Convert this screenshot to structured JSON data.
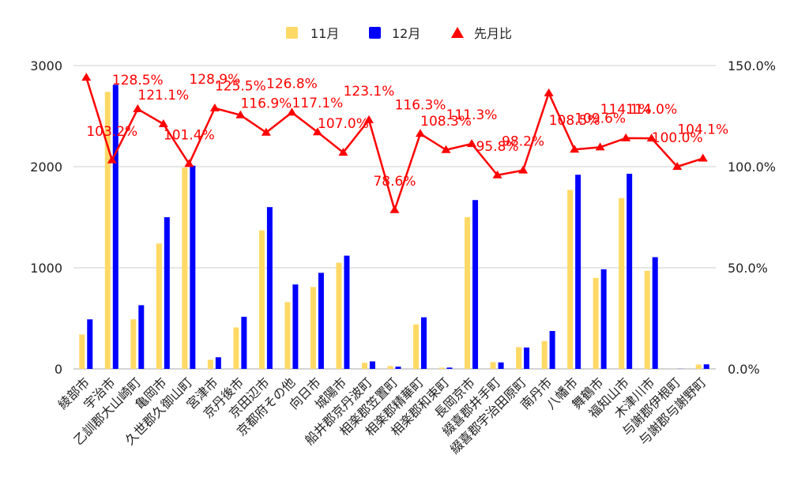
{
  "chart_data": {
    "type": "bar",
    "categories": [
      "綾部市",
      "宇治市",
      "乙訓郡大山崎町",
      "亀岡市",
      "久世郡久御山町",
      "宮津市",
      "京丹後市",
      "京田辺市",
      "京都府その他",
      "向日市",
      "城陽市",
      "船井郡京丹波町",
      "相楽郡笠置町",
      "相楽郡精華町",
      "相楽郡和束町",
      "長岡京市",
      "綴喜郡井手町",
      "綴喜郡宇治田原町",
      "南丹市",
      "八幡市",
      "舞鶴市",
      "福知山市",
      "木津川市",
      "与謝郡伊根町",
      "与謝郡与謝野町"
    ],
    "series": [
      {
        "name": "11月",
        "type": "bar",
        "axis": "left",
        "color": "#FFD966",
        "values": [
          340,
          2740,
          490,
          1240,
          1990,
          90,
          410,
          1370,
          660,
          810,
          1050,
          60,
          28,
          440,
          12,
          1500,
          67,
          215,
          275,
          1770,
          900,
          1690,
          970,
          1,
          43
        ]
      },
      {
        "name": "12月",
        "type": "bar",
        "axis": "left",
        "color": "#0000FF",
        "values": [
          490,
          2810,
          630,
          1500,
          2010,
          115,
          515,
          1600,
          835,
          950,
          1120,
          74,
          22,
          510,
          13,
          1670,
          64,
          211,
          375,
          1920,
          985,
          1930,
          1105,
          1,
          45
        ]
      },
      {
        "name": "先月比",
        "type": "line",
        "axis": "right",
        "color": "#FF0000",
        "marker": "triangle",
        "values": [
          144.1,
          103.2,
          128.5,
          121.1,
          101.4,
          128.9,
          125.5,
          116.9,
          126.8,
          117.1,
          107.0,
          123.1,
          78.6,
          116.3,
          108.3,
          111.3,
          95.8,
          98.2,
          136.4,
          108.5,
          109.6,
          114.1,
          114.0,
          100.0,
          104.1
        ],
        "data_labels": [
          "",
          "103.2%",
          "128.5%",
          "121.1%",
          "101.4%",
          "128.9%",
          "125.5%",
          "116.9%",
          "126.8%",
          "117.1%",
          "107.0%",
          "123.1%",
          "78.6%",
          "116.3%",
          "108.3%",
          "111.3%",
          "95.8%",
          "98.2%",
          "",
          "108.5%",
          "109.6%",
          "114.1%",
          "114.0%",
          "100.0%",
          "104.1%"
        ]
      }
    ],
    "y_left": {
      "ylim": [
        0,
        3000
      ],
      "ticks": [
        0,
        1000,
        2000,
        3000
      ],
      "tick_labels": [
        "0",
        "1000",
        "2000",
        "3000"
      ]
    },
    "y_right": {
      "ylim": [
        0,
        150
      ],
      "ticks": [
        0,
        50,
        100,
        150
      ],
      "tick_labels": [
        "0.0%",
        "50.0%",
        "100.0%",
        "150.0%"
      ]
    },
    "grid": true,
    "legend_position": "top"
  }
}
